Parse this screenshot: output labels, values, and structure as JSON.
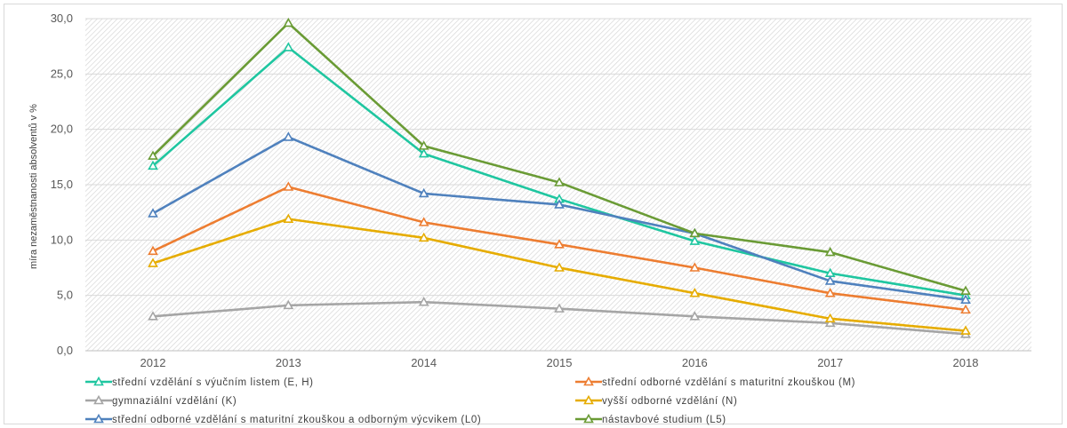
{
  "chart_data": {
    "type": "line",
    "ylabel": "míra nezaměstnanosti absolventů v %",
    "xlabel": "",
    "categories": [
      "2012",
      "2013",
      "2014",
      "2015",
      "2016",
      "2017",
      "2018"
    ],
    "ylim": [
      0,
      30
    ],
    "yticks": [
      "0,0",
      "5,0",
      "10,0",
      "15,0",
      "20,0",
      "25,0",
      "30,0"
    ],
    "grid": "horizontal",
    "legend_position": "bottom",
    "series": [
      {
        "name": "střední vzdělání s výučním listem (E, H)",
        "color": "#1fc6a0",
        "values": [
          16.7,
          27.4,
          17.8,
          13.7,
          9.9,
          7.0,
          5.0
        ]
      },
      {
        "name": "střední odborné vzdělání s maturitní zkouškou (M)",
        "color": "#ed7d31",
        "values": [
          9.0,
          14.8,
          11.6,
          9.6,
          7.5,
          5.2,
          3.7
        ]
      },
      {
        "name": "gymnaziální vzdělání (K)",
        "color": "#a5a5a5",
        "values": [
          3.1,
          4.1,
          4.4,
          3.8,
          3.1,
          2.5,
          1.5
        ]
      },
      {
        "name": "vyšší odborné vzdělání (N)",
        "color": "#e6ac00",
        "values": [
          7.9,
          11.9,
          10.2,
          7.5,
          5.2,
          2.9,
          1.8
        ]
      },
      {
        "name": "střední odborné vzdělání s maturitní zkouškou a odborným výcvikem (L0)",
        "color": "#4f81bd",
        "values": [
          12.4,
          19.3,
          14.2,
          13.2,
          10.6,
          6.3,
          4.6
        ]
      },
      {
        "name": "nástavbové studium (L5)",
        "color": "#6a9b35",
        "values": [
          17.6,
          29.6,
          18.5,
          15.2,
          10.6,
          8.9,
          5.4
        ]
      }
    ]
  }
}
